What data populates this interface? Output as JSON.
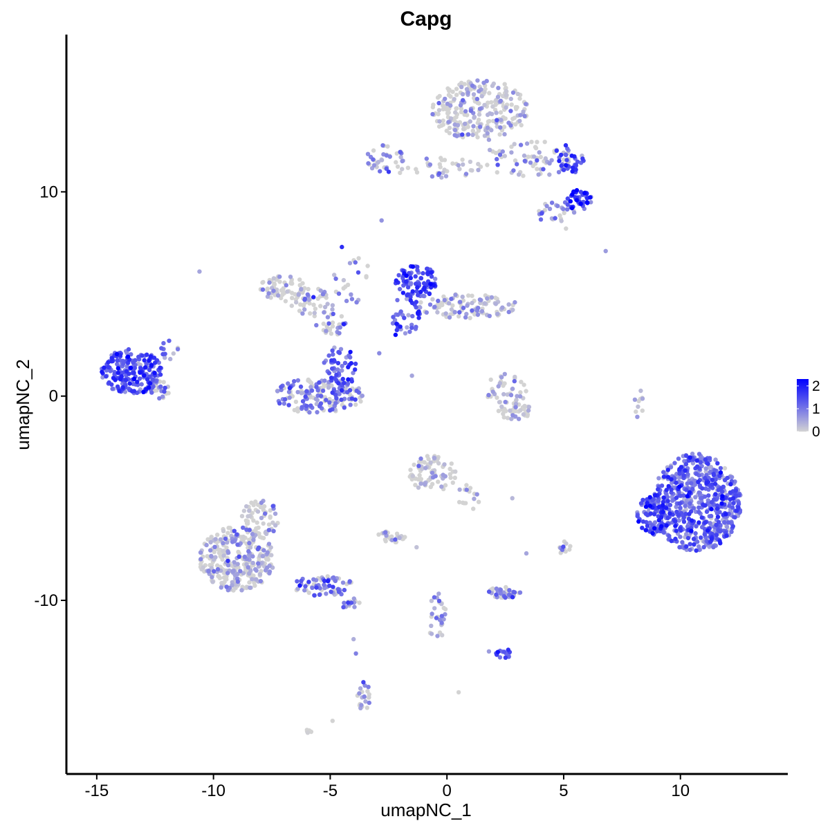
{
  "chart_data": {
    "type": "scatter",
    "title": "Capg",
    "xlabel": "umapNC_1",
    "ylabel": "umapNC_2",
    "xlim": [
      -16.3,
      14.6
    ],
    "ylim": [
      -18.5,
      17.7
    ],
    "x_ticks": [
      -15,
      -10,
      -5,
      0,
      5,
      10
    ],
    "x_tick_labels": [
      "-15",
      "-10",
      "-5",
      "0",
      "5",
      "10"
    ],
    "y_ticks": [
      -10,
      0,
      10
    ],
    "y_tick_labels": [
      "-10",
      "0",
      "10"
    ],
    "grid": false,
    "legend": {
      "position": "right",
      "labels": [
        "2",
        "1",
        "0"
      ],
      "values": [
        2,
        1,
        0
      ]
    },
    "color_scale": {
      "low": "#d3d3d3",
      "high": "#0000ff",
      "min": 0,
      "max": 2.3
    },
    "clusters": [
      {
        "cx": 1.4,
        "cy": 14.0,
        "rx": 2.1,
        "ry": 1.5,
        "n": 260,
        "expr": 0.15
      },
      {
        "cx": 3.5,
        "cy": 11.6,
        "rx": 2.0,
        "ry": 0.9,
        "n": 70,
        "expr": 0.5
      },
      {
        "cx": 5.2,
        "cy": 11.6,
        "rx": 0.7,
        "ry": 0.7,
        "n": 30,
        "expr": 1.3
      },
      {
        "cx": 5.6,
        "cy": 9.6,
        "rx": 0.6,
        "ry": 0.5,
        "n": 45,
        "expr": 1.6
      },
      {
        "cx": 4.6,
        "cy": 9.0,
        "rx": 0.9,
        "ry": 0.5,
        "n": 25,
        "expr": 0.7
      },
      {
        "cx": -2.7,
        "cy": 11.6,
        "rx": 0.9,
        "ry": 0.7,
        "n": 35,
        "expr": 0.6
      },
      {
        "cx": -0.4,
        "cy": 11.2,
        "rx": 2.2,
        "ry": 0.5,
        "n": 40,
        "expr": 0.4
      },
      {
        "cx": -1.3,
        "cy": 5.6,
        "rx": 0.9,
        "ry": 0.8,
        "n": 90,
        "expr": 1.4
      },
      {
        "cx": -1.7,
        "cy": 4.0,
        "rx": 0.7,
        "ry": 1.0,
        "n": 40,
        "expr": 1.1
      },
      {
        "cx": 0.9,
        "cy": 4.4,
        "rx": 2.2,
        "ry": 0.6,
        "n": 110,
        "expr": 0.3
      },
      {
        "cx": -7.0,
        "cy": 5.3,
        "rx": 1.0,
        "ry": 0.6,
        "n": 60,
        "expr": 0.05
      },
      {
        "cx": -5.6,
        "cy": 4.6,
        "rx": 1.4,
        "ry": 0.7,
        "n": 50,
        "expr": 0.3
      },
      {
        "cx": -4.9,
        "cy": 3.5,
        "rx": 0.7,
        "ry": 0.5,
        "n": 25,
        "expr": 0.8
      },
      {
        "cx": -4.1,
        "cy": 5.8,
        "rx": 0.8,
        "ry": 1.3,
        "n": 20,
        "expr": 0.7
      },
      {
        "cx": -5.5,
        "cy": 0.0,
        "rx": 1.9,
        "ry": 0.9,
        "n": 170,
        "expr": 0.9
      },
      {
        "cx": -4.6,
        "cy": 1.4,
        "rx": 0.7,
        "ry": 1.2,
        "n": 55,
        "expr": 1.2
      },
      {
        "cx": -13.5,
        "cy": 1.2,
        "rx": 1.3,
        "ry": 1.1,
        "n": 220,
        "expr": 1.3
      },
      {
        "cx": -12.4,
        "cy": 0.3,
        "rx": 0.5,
        "ry": 0.5,
        "n": 30,
        "expr": 1.0
      },
      {
        "cx": -11.9,
        "cy": 2.2,
        "rx": 0.4,
        "ry": 0.6,
        "n": 12,
        "expr": 0.8
      },
      {
        "cx": 2.5,
        "cy": 0.3,
        "rx": 0.9,
        "ry": 0.8,
        "n": 45,
        "expr": 0.4
      },
      {
        "cx": 2.9,
        "cy": -0.8,
        "rx": 0.9,
        "ry": 0.4,
        "n": 35,
        "expr": 0.2
      },
      {
        "cx": 8.2,
        "cy": -0.4,
        "rx": 0.2,
        "ry": 0.8,
        "n": 10,
        "expr": 0.4
      },
      {
        "cx": 10.7,
        "cy": -5.2,
        "rx": 1.9,
        "ry": 2.4,
        "n": 620,
        "expr": 1.1
      },
      {
        "cx": 8.9,
        "cy": -5.8,
        "rx": 0.8,
        "ry": 1.0,
        "n": 90,
        "expr": 1.4
      },
      {
        "cx": -0.6,
        "cy": -3.8,
        "rx": 1.0,
        "ry": 0.9,
        "n": 80,
        "expr": 0.05
      },
      {
        "cx": 0.9,
        "cy": -4.9,
        "rx": 0.5,
        "ry": 0.8,
        "n": 15,
        "expr": 0.4
      },
      {
        "cx": -2.4,
        "cy": -6.9,
        "rx": 0.6,
        "ry": 0.3,
        "n": 25,
        "expr": 0.3
      },
      {
        "cx": -9.0,
        "cy": -8.0,
        "rx": 1.6,
        "ry": 1.6,
        "n": 330,
        "expr": 0.3
      },
      {
        "cx": -8.0,
        "cy": -6.0,
        "rx": 0.8,
        "ry": 0.9,
        "n": 60,
        "expr": 0.2
      },
      {
        "cx": -5.3,
        "cy": -9.3,
        "rx": 1.3,
        "ry": 0.5,
        "n": 70,
        "expr": 0.9
      },
      {
        "cx": -4.1,
        "cy": -10.2,
        "rx": 0.4,
        "ry": 0.3,
        "n": 15,
        "expr": 1.0
      },
      {
        "cx": 2.5,
        "cy": -9.6,
        "rx": 0.7,
        "ry": 0.3,
        "n": 45,
        "expr": 0.8
      },
      {
        "cx": 5.0,
        "cy": -7.4,
        "rx": 0.3,
        "ry": 0.3,
        "n": 12,
        "expr": 0.3
      },
      {
        "cx": 2.4,
        "cy": -12.6,
        "rx": 0.3,
        "ry": 0.3,
        "n": 14,
        "expr": 1.2
      },
      {
        "cx": -0.4,
        "cy": -10.8,
        "rx": 0.4,
        "ry": 1.4,
        "n": 28,
        "expr": 0.6
      },
      {
        "cx": -3.6,
        "cy": -14.7,
        "rx": 0.3,
        "ry": 0.8,
        "n": 22,
        "expr": 0.5
      },
      {
        "cx": -6.0,
        "cy": -16.4,
        "rx": 0.2,
        "ry": 0.1,
        "n": 5,
        "expr": 0.0
      }
    ],
    "scattered_points": [
      {
        "x": -2.2,
        "y": 3.0,
        "v": 2.2
      },
      {
        "x": -2.0,
        "y": 3.4,
        "v": 2.0
      },
      {
        "x": -13.0,
        "y": 0.2,
        "v": 2.3
      },
      {
        "x": -4.5,
        "y": 7.3,
        "v": 1.8
      },
      {
        "x": 5.1,
        "y": 11.3,
        "v": 2.1
      },
      {
        "x": -10.6,
        "y": 6.1,
        "v": 0.5
      },
      {
        "x": 6.8,
        "y": 7.1,
        "v": 0.6
      },
      {
        "x": -2.8,
        "y": 8.6,
        "v": 0.7
      },
      {
        "x": -4.0,
        "y": -11.9,
        "v": 0.4
      },
      {
        "x": -3.9,
        "y": -12.6,
        "v": 0.9
      },
      {
        "x": -4.9,
        "y": -15.9,
        "v": 0.0
      },
      {
        "x": 0.5,
        "y": -14.5,
        "v": 0.0
      },
      {
        "x": 5.1,
        "y": 8.2,
        "v": 0.0
      },
      {
        "x": 3.4,
        "y": -7.7,
        "v": 0.5
      },
      {
        "x": 2.8,
        "y": -5.0,
        "v": 0.3
      },
      {
        "x": -1.5,
        "y": 1.0,
        "v": 0.5
      },
      {
        "x": -2.9,
        "y": 2.1,
        "v": 0.8
      },
      {
        "x": -1.3,
        "y": -7.4,
        "v": 0.2
      },
      {
        "x": 1.8,
        "y": -12.5,
        "v": 0.6
      }
    ]
  }
}
